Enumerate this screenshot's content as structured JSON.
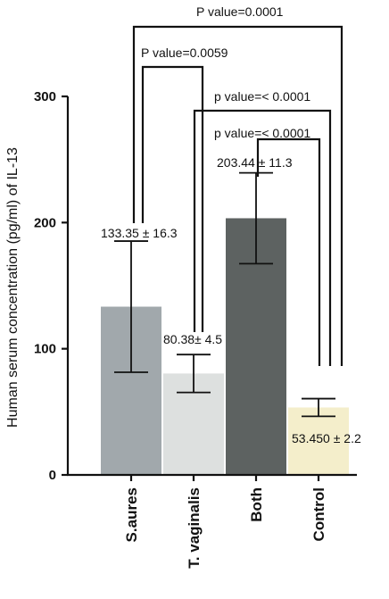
{
  "chart_data": {
    "type": "bar",
    "title": "",
    "xlabel": "",
    "ylabel": "Human serum concentration (pg/ml) of IL-13",
    "ylim": [
      0,
      300
    ],
    "yticks": [
      "0",
      "100",
      "200",
      "300"
    ],
    "categories": [
      "S.aures",
      "T. vaginalis",
      "Both",
      "Control"
    ],
    "values": [
      133.35,
      80.38,
      203.44,
      53.45
    ],
    "errors": [
      52,
      15,
      36,
      7
    ],
    "value_labels": [
      "133.35 ± 16.3",
      "80.38± 4.5",
      "203.44 ± 11.3",
      "53.450 ± 2.2"
    ],
    "colors": [
      "#a1a8ac",
      "#dde0df",
      "#5d6261",
      "#f4eecb"
    ],
    "grid": false,
    "legend": "none",
    "comparisons": [
      {
        "from": "S.aures",
        "to": "Control",
        "label": "P value=0.0001"
      },
      {
        "from": "S.aures",
        "to": "T. vaginalis",
        "label": "P value=0.0059"
      },
      {
        "from": "T. vaginalis",
        "to": "Control",
        "label": "p value=< 0.0001"
      },
      {
        "from": "Both",
        "to": "Control",
        "label": "p value=< 0.0001"
      }
    ]
  }
}
